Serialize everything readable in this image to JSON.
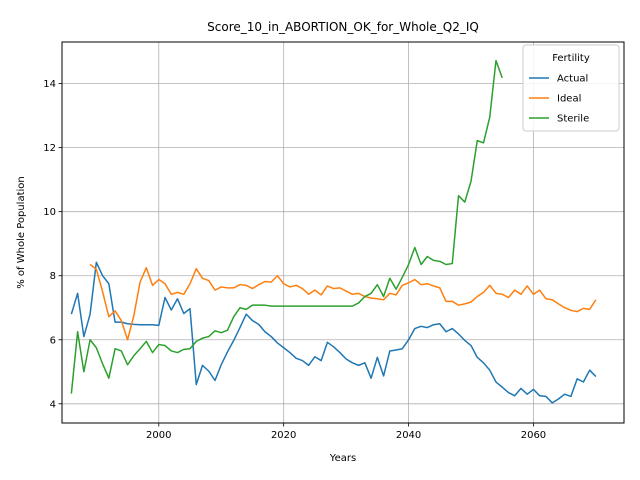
{
  "chart_data": {
    "type": "line",
    "title": "Score_10_in_ABORTION_OK_for_Whole_Q2_IQ",
    "xlabel": "Years",
    "ylabel": "% of Whole Population",
    "xlim": [
      1984.5,
      2074.5
    ],
    "ylim": [
      3.4,
      15.3
    ],
    "xticks": [
      2000,
      2020,
      2040,
      2060
    ],
    "yticks": [
      4,
      6,
      8,
      10,
      12,
      14
    ],
    "grid": true,
    "legend": {
      "title": "Fertility",
      "placement": "top-right"
    },
    "series": [
      {
        "name": "Actual",
        "color": "#1f77b4",
        "points": [
          [
            1986,
            6.8
          ],
          [
            1987,
            7.45
          ],
          [
            1988,
            6.1
          ],
          [
            1989,
            6.8
          ],
          [
            1990,
            8.42
          ],
          [
            1991,
            8.0
          ],
          [
            1992,
            7.75
          ],
          [
            1993,
            6.55
          ],
          [
            1994,
            6.55
          ],
          [
            1995,
            6.5
          ],
          [
            1996,
            6.48
          ],
          [
            1997,
            6.47
          ],
          [
            1998,
            6.47
          ],
          [
            1999,
            6.47
          ],
          [
            2000,
            6.45
          ],
          [
            2001,
            7.32
          ],
          [
            2002,
            6.93
          ],
          [
            2003,
            7.28
          ],
          [
            2004,
            6.82
          ],
          [
            2005,
            6.97
          ],
          [
            2006,
            4.6
          ],
          [
            2007,
            5.2
          ],
          [
            2008,
            5.02
          ],
          [
            2009,
            4.73
          ],
          [
            2010,
            5.22
          ],
          [
            2011,
            5.62
          ],
          [
            2012,
            5.98
          ],
          [
            2013,
            6.38
          ],
          [
            2014,
            6.8
          ],
          [
            2015,
            6.6
          ],
          [
            2016,
            6.48
          ],
          [
            2017,
            6.25
          ],
          [
            2018,
            6.1
          ],
          [
            2019,
            5.9
          ],
          [
            2020,
            5.75
          ],
          [
            2021,
            5.6
          ],
          [
            2022,
            5.42
          ],
          [
            2023,
            5.35
          ],
          [
            2024,
            5.2
          ],
          [
            2025,
            5.47
          ],
          [
            2026,
            5.35
          ],
          [
            2027,
            5.92
          ],
          [
            2028,
            5.78
          ],
          [
            2029,
            5.6
          ],
          [
            2030,
            5.4
          ],
          [
            2031,
            5.28
          ],
          [
            2032,
            5.2
          ],
          [
            2033,
            5.28
          ],
          [
            2034,
            4.8
          ],
          [
            2035,
            5.45
          ],
          [
            2036,
            4.87
          ],
          [
            2037,
            5.65
          ],
          [
            2038,
            5.68
          ],
          [
            2039,
            5.72
          ],
          [
            2040,
            6.0
          ],
          [
            2041,
            6.35
          ],
          [
            2042,
            6.42
          ],
          [
            2043,
            6.38
          ],
          [
            2044,
            6.47
          ],
          [
            2045,
            6.5
          ],
          [
            2046,
            6.25
          ],
          [
            2047,
            6.35
          ],
          [
            2048,
            6.18
          ],
          [
            2049,
            5.98
          ],
          [
            2050,
            5.82
          ],
          [
            2051,
            5.45
          ],
          [
            2052,
            5.28
          ],
          [
            2053,
            5.05
          ],
          [
            2054,
            4.68
          ],
          [
            2055,
            4.52
          ],
          [
            2056,
            4.35
          ],
          [
            2057,
            4.25
          ],
          [
            2058,
            4.48
          ],
          [
            2059,
            4.3
          ],
          [
            2060,
            4.45
          ],
          [
            2061,
            4.25
          ],
          [
            2062,
            4.23
          ],
          [
            2063,
            4.03
          ],
          [
            2064,
            4.15
          ],
          [
            2065,
            4.3
          ],
          [
            2066,
            4.23
          ],
          [
            2067,
            4.78
          ],
          [
            2068,
            4.68
          ],
          [
            2069,
            5.05
          ],
          [
            2070,
            4.85
          ]
        ]
      },
      {
        "name": "Ideal",
        "color": "#ff7f0e",
        "points": [
          [
            1989,
            8.35
          ],
          [
            1990,
            8.2
          ],
          [
            1991,
            7.5
          ],
          [
            1992,
            6.72
          ],
          [
            1993,
            6.9
          ],
          [
            1994,
            6.6
          ],
          [
            1995,
            6.0
          ],
          [
            1996,
            6.75
          ],
          [
            1997,
            7.8
          ],
          [
            1998,
            8.25
          ],
          [
            1999,
            7.7
          ],
          [
            2000,
            7.88
          ],
          [
            2001,
            7.75
          ],
          [
            2002,
            7.42
          ],
          [
            2003,
            7.48
          ],
          [
            2004,
            7.42
          ],
          [
            2005,
            7.75
          ],
          [
            2006,
            8.22
          ],
          [
            2007,
            7.92
          ],
          [
            2008,
            7.85
          ],
          [
            2009,
            7.55
          ],
          [
            2010,
            7.65
          ],
          [
            2011,
            7.62
          ],
          [
            2012,
            7.62
          ],
          [
            2013,
            7.72
          ],
          [
            2014,
            7.7
          ],
          [
            2015,
            7.6
          ],
          [
            2016,
            7.72
          ],
          [
            2017,
            7.82
          ],
          [
            2018,
            7.8
          ],
          [
            2019,
            8.0
          ],
          [
            2020,
            7.75
          ],
          [
            2021,
            7.65
          ],
          [
            2022,
            7.7
          ],
          [
            2023,
            7.6
          ],
          [
            2024,
            7.42
          ],
          [
            2025,
            7.55
          ],
          [
            2026,
            7.4
          ],
          [
            2027,
            7.68
          ],
          [
            2028,
            7.6
          ],
          [
            2029,
            7.62
          ],
          [
            2030,
            7.52
          ],
          [
            2031,
            7.42
          ],
          [
            2032,
            7.45
          ],
          [
            2033,
            7.35
          ],
          [
            2034,
            7.3
          ],
          [
            2035,
            7.28
          ],
          [
            2036,
            7.25
          ],
          [
            2037,
            7.45
          ],
          [
            2038,
            7.4
          ],
          [
            2039,
            7.7
          ],
          [
            2040,
            7.78
          ],
          [
            2041,
            7.88
          ],
          [
            2042,
            7.72
          ],
          [
            2043,
            7.75
          ],
          [
            2044,
            7.68
          ],
          [
            2045,
            7.62
          ],
          [
            2046,
            7.2
          ],
          [
            2047,
            7.2
          ],
          [
            2048,
            7.08
          ],
          [
            2049,
            7.12
          ],
          [
            2050,
            7.18
          ],
          [
            2051,
            7.35
          ],
          [
            2052,
            7.48
          ],
          [
            2053,
            7.7
          ],
          [
            2054,
            7.45
          ],
          [
            2055,
            7.42
          ],
          [
            2056,
            7.32
          ],
          [
            2057,
            7.55
          ],
          [
            2058,
            7.42
          ],
          [
            2059,
            7.68
          ],
          [
            2060,
            7.42
          ],
          [
            2061,
            7.55
          ],
          [
            2062,
            7.28
          ],
          [
            2063,
            7.25
          ],
          [
            2064,
            7.12
          ],
          [
            2065,
            7.0
          ],
          [
            2066,
            6.92
          ],
          [
            2067,
            6.88
          ],
          [
            2068,
            6.98
          ],
          [
            2069,
            6.95
          ],
          [
            2070,
            7.25
          ]
        ]
      },
      {
        "name": "Sterile",
        "color": "#2ca02c",
        "points": [
          [
            1986,
            4.32
          ],
          [
            1987,
            6.25
          ],
          [
            1988,
            5.0
          ],
          [
            1989,
            6.0
          ],
          [
            1990,
            5.75
          ],
          [
            1991,
            5.25
          ],
          [
            1992,
            4.8
          ],
          [
            1993,
            5.72
          ],
          [
            1994,
            5.65
          ],
          [
            1995,
            5.22
          ],
          [
            1996,
            5.5
          ],
          [
            1997,
            5.72
          ],
          [
            1998,
            5.95
          ],
          [
            1999,
            5.6
          ],
          [
            2000,
            5.85
          ],
          [
            2001,
            5.82
          ],
          [
            2002,
            5.65
          ],
          [
            2003,
            5.6
          ],
          [
            2004,
            5.7
          ],
          [
            2005,
            5.72
          ],
          [
            2006,
            5.95
          ],
          [
            2007,
            6.05
          ],
          [
            2008,
            6.1
          ],
          [
            2009,
            6.28
          ],
          [
            2010,
            6.22
          ],
          [
            2011,
            6.3
          ],
          [
            2012,
            6.72
          ],
          [
            2013,
            7.0
          ],
          [
            2014,
            6.95
          ],
          [
            2015,
            7.08
          ],
          [
            2016,
            7.08
          ],
          [
            2017,
            7.08
          ],
          [
            2018,
            7.05
          ],
          [
            2019,
            7.05
          ],
          [
            2020,
            7.05
          ],
          [
            2021,
            7.05
          ],
          [
            2022,
            7.05
          ],
          [
            2023,
            7.05
          ],
          [
            2024,
            7.05
          ],
          [
            2025,
            7.05
          ],
          [
            2026,
            7.05
          ],
          [
            2027,
            7.05
          ],
          [
            2028,
            7.05
          ],
          [
            2029,
            7.05
          ],
          [
            2030,
            7.05
          ],
          [
            2031,
            7.05
          ],
          [
            2032,
            7.15
          ],
          [
            2033,
            7.35
          ],
          [
            2034,
            7.45
          ],
          [
            2035,
            7.72
          ],
          [
            2036,
            7.35
          ],
          [
            2037,
            7.92
          ],
          [
            2038,
            7.58
          ],
          [
            2039,
            7.95
          ],
          [
            2040,
            8.35
          ],
          [
            2041,
            8.88
          ],
          [
            2042,
            8.35
          ],
          [
            2043,
            8.6
          ],
          [
            2044,
            8.48
          ],
          [
            2045,
            8.45
          ],
          [
            2046,
            8.35
          ],
          [
            2047,
            8.38
          ],
          [
            2048,
            10.5
          ],
          [
            2049,
            10.3
          ],
          [
            2050,
            10.95
          ],
          [
            2051,
            12.22
          ],
          [
            2052,
            12.15
          ],
          [
            2053,
            12.95
          ],
          [
            2054,
            14.72
          ],
          [
            2055,
            14.18
          ]
        ]
      }
    ]
  }
}
